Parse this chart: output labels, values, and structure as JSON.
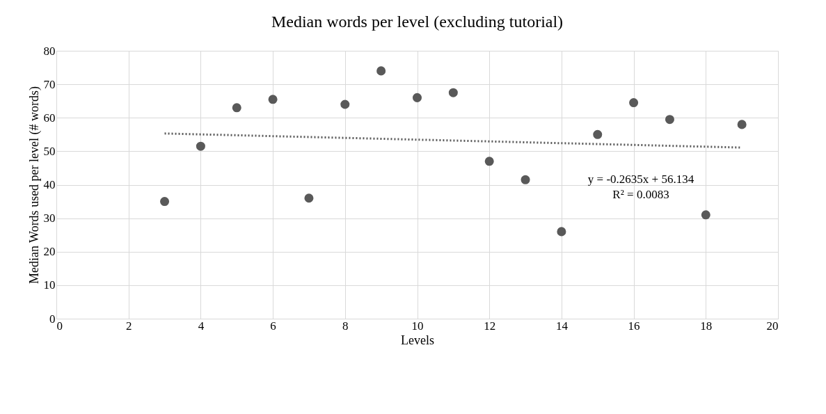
{
  "chart_data": {
    "type": "scatter",
    "title": "Median words per level (excluding tutorial)",
    "xlabel": "Levels",
    "ylabel": "Median Words used per level (# words)",
    "xlim": [
      0,
      20
    ],
    "xticks": [
      0,
      2,
      4,
      6,
      8,
      10,
      12,
      14,
      16,
      18,
      20
    ],
    "ylim": [
      0,
      80
    ],
    "yticks": [
      0,
      10,
      20,
      30,
      40,
      50,
      60,
      70,
      80
    ],
    "grid": true,
    "series": [
      {
        "marker": "circle",
        "color": "#595959",
        "x": [
          3,
          4,
          5,
          6,
          7,
          8,
          9,
          10,
          11,
          12,
          13,
          14,
          15,
          16,
          17,
          18,
          19
        ],
        "values": [
          35,
          51.5,
          63,
          65.5,
          36,
          64,
          74,
          66,
          67.5,
          47,
          41.5,
          26,
          55,
          64.5,
          59.5,
          31,
          58
        ]
      },
      {
        "type": "line",
        "color": "#595959",
        "line_style": "dotted",
        "x": [
          3,
          19
        ],
        "values": [
          55.3,
          51.1
        ]
      }
    ],
    "annotations": [
      "y = -0.2635x + 56.134",
      "R² = 0.0083"
    ]
  }
}
